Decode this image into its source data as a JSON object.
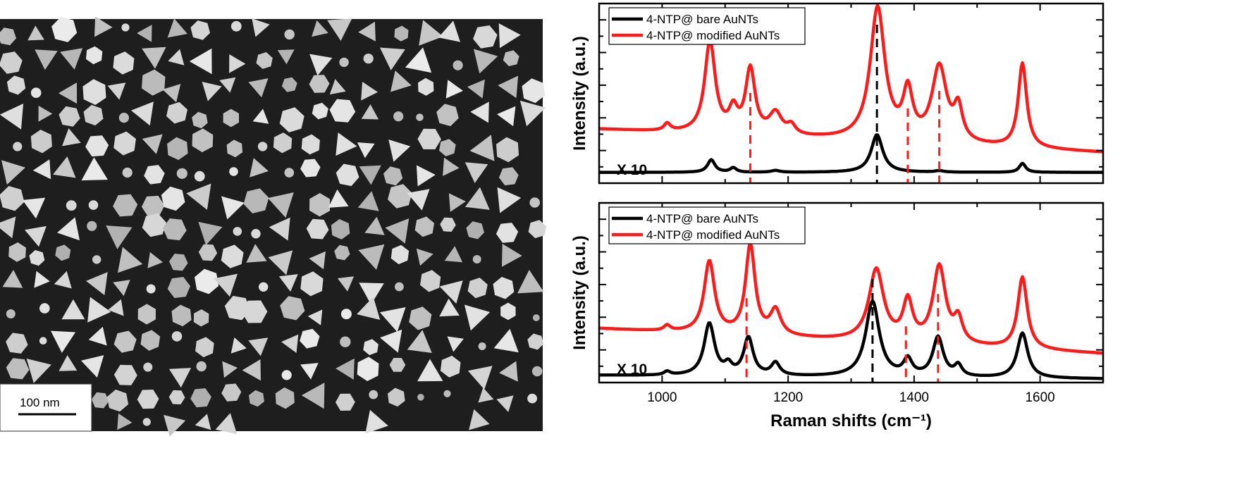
{
  "sem_image": {
    "scale_bar_label": "100 nm",
    "background_color": "#1e1e1e",
    "particle_color": "#cfcfcf"
  },
  "chart_data": [
    {
      "type": "line",
      "panel": "top",
      "xlabel": "",
      "ylabel": "Intensity (a.u.)",
      "xlim": [
        900,
        1700
      ],
      "x_ticks": [
        1000,
        1200,
        1400,
        1600
      ],
      "x_tick_labels_shown": false,
      "y_ticks_shown": true,
      "y_tick_labels_shown": false,
      "legend_position": "top-left",
      "annotation": "X 10",
      "series": [
        {
          "name": "4-NTP@ bare AuNTs",
          "color": "#000000",
          "baseline": 0.06,
          "peaks": [
            [
              1078,
              0.07,
              7
            ],
            [
              1113,
              0.025,
              6
            ],
            [
              1180,
              0.01,
              8
            ],
            [
              1341,
              0.21,
              11
            ],
            [
              1440,
              0.008,
              8
            ],
            [
              1572,
              0.05,
              6
            ]
          ]
        },
        {
          "name": "4-NTP@ modified AuNTs",
          "color": "#ff1a1a",
          "baseline": 0.3,
          "baseline_end": 0.17,
          "peaks": [
            [
              1008,
              0.04,
              6
            ],
            [
              1076,
              0.51,
              10
            ],
            [
              1113,
              0.12,
              8
            ],
            [
              1140,
              0.36,
              9
            ],
            [
              1180,
              0.12,
              12
            ],
            [
              1205,
              0.05,
              8
            ],
            [
              1342,
              0.74,
              14
            ],
            [
              1390,
              0.26,
              9
            ],
            [
              1440,
              0.42,
              14
            ],
            [
              1470,
              0.18,
              8
            ],
            [
              1572,
              0.47,
              8
            ]
          ]
        }
      ],
      "dashed_lines": [
        {
          "x": 1140,
          "color": "#ff1a1a"
        },
        {
          "x": 1341,
          "color": "#000000"
        },
        {
          "x": 1390,
          "color": "#ff1a1a"
        },
        {
          "x": 1440,
          "color": "#ff1a1a"
        }
      ]
    },
    {
      "type": "line",
      "panel": "bottom",
      "xlabel": "Raman shifts (cm⁻¹)",
      "ylabel": "Intensity (a.u.)",
      "xlim": [
        900,
        1700
      ],
      "x_ticks": [
        1000,
        1200,
        1400,
        1600
      ],
      "x_tick_labels": [
        "1000",
        "1200",
        "1400",
        "1600"
      ],
      "y_ticks_shown": true,
      "y_tick_labels_shown": false,
      "legend_position": "top-left",
      "annotation": "X 10",
      "series": [
        {
          "name": "4-NTP@ bare AuNTs",
          "color": "#000000",
          "baseline": 0.04,
          "baseline_end": 0.02,
          "peaks": [
            [
              1008,
              0.02,
              6
            ],
            [
              1075,
              0.29,
              10
            ],
            [
              1105,
              0.05,
              7
            ],
            [
              1137,
              0.21,
              9
            ],
            [
              1180,
              0.07,
              8
            ],
            [
              1334,
              0.42,
              13
            ],
            [
              1390,
              0.09,
              8
            ],
            [
              1438,
              0.22,
              10
            ],
            [
              1470,
              0.06,
              7
            ],
            [
              1572,
              0.25,
              10
            ]
          ]
        },
        {
          "name": "4-NTP@ modified AuNTs",
          "color": "#ff1a1a",
          "baseline": 0.3,
          "baseline_end": 0.16,
          "peaks": [
            [
              1008,
              0.03,
              6
            ],
            [
              1075,
              0.4,
              10
            ],
            [
              1140,
              0.5,
              9
            ],
            [
              1180,
              0.14,
              10
            ],
            [
              1340,
              0.4,
              14
            ],
            [
              1390,
              0.22,
              9
            ],
            [
              1440,
              0.43,
              12
            ],
            [
              1470,
              0.13,
              8
            ],
            [
              1572,
              0.4,
              9
            ]
          ]
        }
      ],
      "dashed_lines": [
        {
          "x": 1134,
          "color": "#ff1a1a"
        },
        {
          "x": 1334,
          "color": "#000000"
        },
        {
          "x": 1387,
          "color": "#ff1a1a"
        },
        {
          "x": 1438,
          "color": "#ff1a1a"
        }
      ]
    }
  ]
}
